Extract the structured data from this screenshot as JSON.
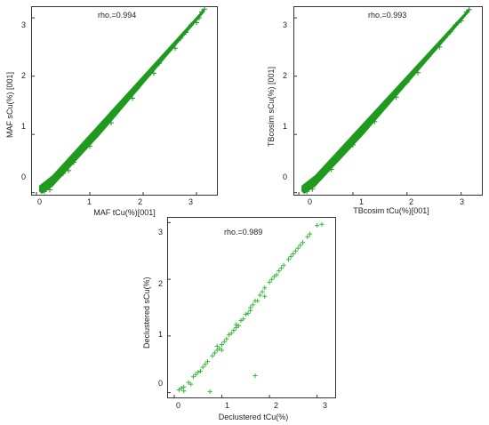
{
  "chart_data": [
    {
      "type": "scatter",
      "title": "",
      "annotation": "rho.=0.994",
      "xlabel": "MAF tCu(%)[001]",
      "ylabel": "MAF sCu(%) [001]",
      "xlim": [
        -0.1,
        3.4
      ],
      "ylim": [
        -0.05,
        3.2
      ],
      "xticks": [
        "0",
        "1",
        "2",
        "3"
      ],
      "yticks": [
        "0",
        "1",
        "2",
        "3"
      ],
      "marker": "+",
      "color": "#1f9a1f",
      "grid": false,
      "points": [
        [
          0.1,
          0.05
        ],
        [
          0.2,
          0.1
        ],
        [
          0.3,
          0.17
        ],
        [
          0.5,
          0.33
        ],
        [
          0.7,
          0.52
        ],
        [
          0.9,
          0.75
        ],
        [
          1.1,
          0.95
        ],
        [
          1.3,
          1.18
        ],
        [
          1.5,
          1.38
        ],
        [
          1.7,
          1.6
        ],
        [
          1.9,
          1.8
        ],
        [
          2.1,
          2.02
        ],
        [
          2.3,
          2.22
        ],
        [
          2.5,
          2.45
        ],
        [
          2.7,
          2.65
        ],
        [
          2.9,
          2.88
        ],
        [
          3.1,
          3.1
        ],
        [
          3.15,
          3.15
        ],
        [
          0.15,
          0.02
        ],
        [
          0.25,
          0.05
        ],
        [
          0.6,
          0.38
        ],
        [
          1.0,
          0.8
        ],
        [
          1.4,
          1.2
        ],
        [
          1.8,
          1.62
        ],
        [
          2.2,
          2.05
        ],
        [
          2.6,
          2.48
        ],
        [
          3.0,
          2.92
        ],
        [
          0.4,
          0.3
        ],
        [
          0.8,
          0.7
        ],
        [
          1.2,
          1.1
        ],
        [
          1.6,
          1.5
        ],
        [
          2.0,
          1.92
        ],
        [
          2.4,
          2.35
        ],
        [
          2.8,
          2.75
        ],
        [
          3.05,
          3.0
        ]
      ]
    },
    {
      "type": "scatter",
      "title": "",
      "annotation": "rho.=0.993",
      "xlabel": "TBcosim tCu(%)[001]",
      "ylabel": "TBcosim sCu(%) [001]",
      "xlim": [
        -0.1,
        3.4
      ],
      "ylim": [
        -0.05,
        3.2
      ],
      "xticks": [
        "0",
        "1",
        "2",
        "3"
      ],
      "yticks": [
        "0",
        "1",
        "2",
        "3"
      ],
      "marker": "+",
      "color": "#1f9a1f",
      "grid": false,
      "points": [
        [
          0.1,
          0.05
        ],
        [
          0.2,
          0.1
        ],
        [
          0.3,
          0.18
        ],
        [
          0.5,
          0.35
        ],
        [
          0.7,
          0.55
        ],
        [
          0.9,
          0.75
        ],
        [
          1.1,
          0.97
        ],
        [
          1.3,
          1.18
        ],
        [
          1.5,
          1.4
        ],
        [
          1.7,
          1.6
        ],
        [
          1.9,
          1.82
        ],
        [
          2.1,
          2.03
        ],
        [
          2.3,
          2.24
        ],
        [
          2.5,
          2.45
        ],
        [
          2.7,
          2.66
        ],
        [
          2.9,
          2.88
        ],
        [
          3.1,
          3.1
        ],
        [
          3.15,
          3.14
        ],
        [
          0.15,
          0.02
        ],
        [
          0.25,
          0.06
        ],
        [
          0.6,
          0.4
        ],
        [
          1.0,
          0.82
        ],
        [
          1.4,
          1.22
        ],
        [
          1.8,
          1.64
        ],
        [
          2.2,
          2.06
        ],
        [
          2.6,
          2.5
        ],
        [
          3.0,
          2.95
        ],
        [
          0.4,
          0.3
        ],
        [
          0.8,
          0.68
        ],
        [
          1.2,
          1.08
        ],
        [
          1.6,
          1.5
        ],
        [
          2.0,
          1.9
        ],
        [
          2.4,
          2.34
        ],
        [
          2.8,
          2.76
        ]
      ]
    },
    {
      "type": "scatter",
      "title": "",
      "annotation": "rho.=0.989",
      "xlabel": "Declustered tCu(%)",
      "ylabel": "Declustered sCu(%)",
      "xlim": [
        -0.15,
        3.4
      ],
      "ylim": [
        -0.1,
        3.1
      ],
      "xticks": [
        "0",
        "1",
        "2",
        "3"
      ],
      "yticks": [
        "0",
        "1",
        "2",
        "3"
      ],
      "marker": "+",
      "color": "#3cb83c",
      "grid": false,
      "points": [
        [
          0.1,
          0.05
        ],
        [
          0.15,
          0.08
        ],
        [
          0.2,
          0.1
        ],
        [
          0.3,
          0.18
        ],
        [
          0.4,
          0.28
        ],
        [
          0.5,
          0.36
        ],
        [
          0.6,
          0.45
        ],
        [
          0.7,
          0.55
        ],
        [
          0.8,
          0.65
        ],
        [
          0.9,
          0.75
        ],
        [
          1.0,
          0.85
        ],
        [
          1.1,
          0.95
        ],
        [
          1.2,
          1.05
        ],
        [
          1.3,
          1.15
        ],
        [
          1.4,
          1.27
        ],
        [
          1.5,
          1.38
        ],
        [
          1.6,
          1.5
        ],
        [
          1.7,
          1.62
        ],
        [
          1.8,
          1.72
        ],
        [
          1.9,
          1.85
        ],
        [
          2.0,
          1.95
        ],
        [
          2.1,
          2.05
        ],
        [
          2.2,
          2.15
        ],
        [
          2.3,
          2.25
        ],
        [
          2.4,
          2.35
        ],
        [
          2.5,
          2.45
        ],
        [
          2.6,
          2.55
        ],
        [
          2.7,
          2.65
        ],
        [
          2.8,
          2.75
        ],
        [
          3.0,
          2.95
        ],
        [
          3.1,
          2.97
        ],
        [
          1.7,
          0.3
        ],
        [
          0.75,
          0.02
        ],
        [
          0.2,
          0.03
        ],
        [
          0.35,
          0.15
        ],
        [
          0.55,
          0.38
        ],
        [
          0.65,
          0.5
        ],
        [
          0.85,
          0.7
        ],
        [
          1.05,
          0.9
        ],
        [
          1.25,
          1.1
        ],
        [
          1.45,
          1.3
        ],
        [
          1.65,
          1.55
        ],
        [
          1.85,
          1.78
        ],
        [
          2.05,
          2.0
        ],
        [
          2.25,
          2.2
        ],
        [
          2.45,
          2.4
        ],
        [
          2.65,
          2.6
        ],
        [
          2.85,
          2.8
        ],
        [
          1.15,
          1.02
        ],
        [
          1.35,
          1.18
        ],
        [
          0.95,
          0.78
        ],
        [
          1.55,
          1.4
        ],
        [
          1.75,
          1.62
        ],
        [
          2.15,
          2.08
        ],
        [
          2.55,
          2.5
        ],
        [
          1.9,
          1.7
        ],
        [
          1.3,
          1.2
        ],
        [
          0.9,
          0.82
        ],
        [
          0.45,
          0.32
        ],
        [
          1.0,
          0.75
        ],
        [
          1.6,
          1.45
        ]
      ]
    }
  ]
}
